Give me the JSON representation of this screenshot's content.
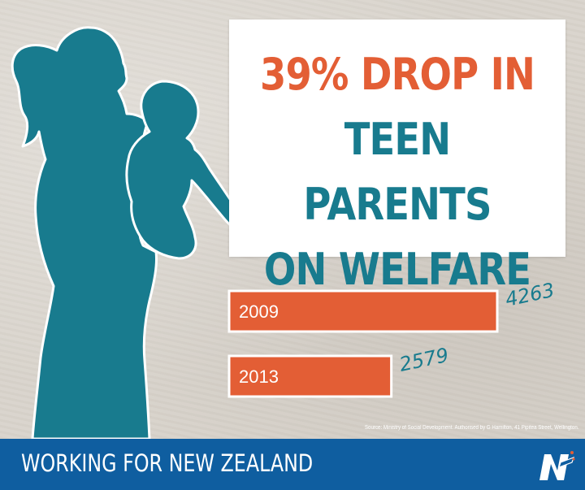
{
  "headline": {
    "line1": "39% DROP IN",
    "line2": "TEEN PARENTS",
    "line3": "ON WELFARE"
  },
  "chart_data": {
    "type": "bar",
    "orientation": "horizontal",
    "categories": [
      "2009",
      "2013"
    ],
    "values": [
      4263,
      2579
    ],
    "value_labels": [
      "4263",
      "2579"
    ],
    "title": "39% DROP IN TEEN PARENTS ON WELFARE",
    "xlabel": "",
    "ylabel": "",
    "xlim": [
      0,
      4263
    ],
    "grid": false,
    "legend": "none"
  },
  "source": "Source: Ministry of Social Development. Authorised by G Hamilton, 41 Pipitea Street, Wellington.",
  "footer": {
    "text": "WORKING FOR NEW ZEALAND"
  },
  "colors": {
    "accent": "#e35e35",
    "teal": "#187b8e",
    "footer": "#0f5ea0",
    "background": "#d9d4cc"
  },
  "icons": {
    "logo": "national-party-logo"
  }
}
